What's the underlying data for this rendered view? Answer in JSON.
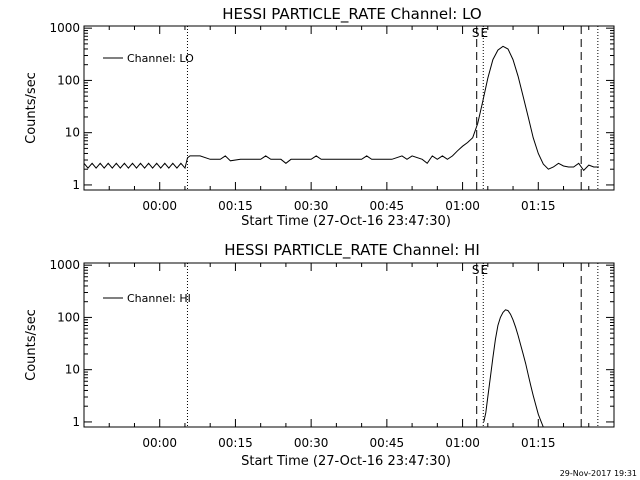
{
  "timestamp": "29-Nov-2017 19:31",
  "chart_data": [
    {
      "type": "line",
      "title": "HESSI PARTICLE_RATE Channel: LO",
      "xlabel": "Start Time (27-Oct-16 23:47:30)",
      "ylabel": "Counts/sec",
      "yscale": "log",
      "ylim": [
        0.8,
        1100
      ],
      "xlim": [
        -15,
        90
      ],
      "x_unit": "minutes after 00:00",
      "x_ticks": [
        0,
        15,
        30,
        45,
        60,
        75
      ],
      "x_tick_labels": [
        "00:00",
        "00:15",
        "00:30",
        "00:45",
        "01:00",
        "01:15"
      ],
      "y_ticks": [
        1,
        10,
        100,
        1000
      ],
      "y_tick_labels": [
        "1",
        "10",
        "100",
        "1000"
      ],
      "legend": {
        "position": "top-left",
        "entries": [
          "Channel: LO"
        ]
      },
      "markers": {
        "S": {
          "label": "S",
          "x": 62.8
        },
        "E": {
          "label": "E",
          "x": 64.1
        },
        "dotted_lines": [
          5.5,
          64.1,
          86.8
        ],
        "dashed_lines": [
          62.8,
          83.5
        ]
      },
      "series": [
        {
          "name": "Channel: LO",
          "x": [
            -15,
            -14.2,
            -13.4,
            -12.6,
            -11.8,
            -11,
            -10.2,
            -9.4,
            -8.6,
            -7.8,
            -7,
            -6.2,
            -5.4,
            -4.6,
            -3.8,
            -3,
            -2.2,
            -1.4,
            -0.6,
            0.2,
            1,
            1.8,
            2.6,
            3.4,
            4.2,
            5,
            5.5,
            6,
            8,
            10,
            12,
            13,
            14,
            16,
            18,
            20,
            21,
            22,
            24,
            25,
            26,
            28,
            30,
            31,
            32,
            34,
            36,
            38,
            40,
            41,
            42,
            44,
            46,
            48,
            49,
            50,
            52,
            53,
            54,
            55,
            56,
            57,
            58,
            59,
            60,
            61,
            62,
            63,
            64,
            65,
            66,
            67,
            68,
            69,
            70,
            71,
            72,
            73,
            74,
            75,
            76,
            77,
            78,
            79,
            80,
            81,
            82,
            83,
            84,
            85,
            86,
            87
          ],
          "values": [
            2.6,
            2.1,
            2.6,
            2.1,
            2.6,
            2.1,
            2.6,
            2.1,
            2.6,
            2.1,
            2.6,
            2.1,
            2.6,
            2.1,
            2.6,
            2.1,
            2.6,
            2.1,
            2.6,
            2.1,
            2.6,
            2.1,
            2.6,
            2.1,
            2.6,
            2.1,
            3.3,
            3.6,
            3.6,
            3.1,
            3.1,
            3.6,
            2.9,
            3.1,
            3.1,
            3.1,
            3.6,
            3.1,
            3.1,
            2.6,
            3.1,
            3.1,
            3.1,
            3.6,
            3.1,
            3.1,
            3.1,
            3.1,
            3.1,
            3.6,
            3.1,
            3.1,
            3.1,
            3.6,
            3.1,
            3.6,
            3.1,
            2.6,
            3.6,
            3.1,
            3.6,
            3.1,
            3.6,
            4.5,
            5.5,
            6.5,
            8,
            15,
            40,
            110,
            250,
            380,
            450,
            400,
            250,
            120,
            50,
            20,
            8,
            4,
            2.5,
            2,
            2.2,
            2.6,
            2.3,
            2.2,
            2.2,
            2.6,
            1.9,
            2.4,
            2.2,
            2.2
          ]
        }
      ]
    },
    {
      "type": "line",
      "title": "HESSI PARTICLE_RATE Channel: HI",
      "xlabel": "Start Time (27-Oct-16 23:47:30)",
      "ylabel": "Counts/sec",
      "yscale": "log",
      "ylim": [
        0.8,
        1100
      ],
      "xlim": [
        -15,
        90
      ],
      "x_unit": "minutes after 00:00",
      "x_ticks": [
        0,
        15,
        30,
        45,
        60,
        75
      ],
      "x_tick_labels": [
        "00:00",
        "00:15",
        "00:30",
        "00:45",
        "01:00",
        "01:15"
      ],
      "y_ticks": [
        1,
        10,
        100,
        1000
      ],
      "y_tick_labels": [
        "1",
        "10",
        "100",
        "1000"
      ],
      "legend": {
        "position": "top-left",
        "entries": [
          "Channel: HI"
        ]
      },
      "markers": {
        "S": {
          "label": "S",
          "x": 62.8
        },
        "E": {
          "label": "E",
          "x": 64.1
        },
        "dotted_lines": [
          5.5,
          64.1,
          86.8
        ],
        "dashed_lines": [
          62.8,
          83.5
        ]
      },
      "series": [
        {
          "name": "Channel: HI",
          "x": [
            64.2,
            64.6,
            65,
            65.5,
            66,
            66.5,
            67,
            67.5,
            68,
            68.5,
            69,
            69.5,
            70,
            70.5,
            71,
            71.5,
            72,
            72.5,
            73,
            73.5,
            74,
            74.5,
            75,
            75.5,
            76
          ],
          "values": [
            1,
            1.5,
            3,
            7,
            17,
            38,
            70,
            100,
            125,
            140,
            135,
            115,
            90,
            65,
            45,
            30,
            20,
            13,
            8,
            5,
            3.2,
            2.1,
            1.4,
            1.05,
            0.8
          ]
        }
      ]
    }
  ]
}
